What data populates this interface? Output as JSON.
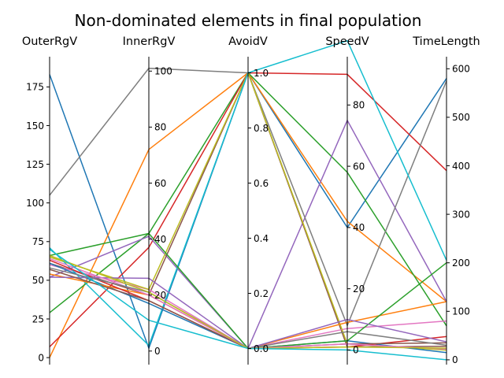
{
  "chart_data": {
    "type": "line",
    "subtype": "parallel-coordinates",
    "title": "Non-dominated elements in final population",
    "axes": [
      {
        "name": "OuterRgV",
        "range": [
          -3,
          193
        ],
        "ticks": [
          0,
          25,
          50,
          75,
          100,
          125,
          150,
          175
        ],
        "tick_side": "left"
      },
      {
        "name": "InnerRgV",
        "range": [
          -4,
          104.3
        ],
        "ticks": [
          0,
          20,
          40,
          60,
          80,
          100
        ],
        "tick_side": "right"
      },
      {
        "name": "AvoidV",
        "range": [
          -0.05,
          1.05
        ],
        "ticks": [
          0.0,
          0.2,
          0.4,
          0.6,
          0.8,
          1.0
        ],
        "tick_side": "right"
      },
      {
        "name": "SpeedV",
        "range": [
          -4,
          95
        ],
        "ticks": [
          0,
          20,
          40,
          60,
          80
        ],
        "tick_side": "right"
      },
      {
        "name": "TimeLength",
        "range": [
          -5,
          620
        ],
        "ticks": [
          0,
          100,
          200,
          300,
          400,
          500,
          600
        ],
        "tick_side": "right"
      }
    ],
    "series": [
      {
        "color": "#1f77b4",
        "values": [
          183,
          1,
          1.0,
          40,
          580
        ]
      },
      {
        "color": "#ff7f0e",
        "values": [
          0,
          72,
          1.0,
          42,
          120
        ]
      },
      {
        "color": "#2ca02c",
        "values": [
          29,
          42,
          1.0,
          58,
          70
        ]
      },
      {
        "color": "#d62728",
        "values": [
          7,
          37,
          1.0,
          90,
          390
        ]
      },
      {
        "color": "#9467bd",
        "values": [
          52,
          41,
          0.0,
          75,
          120
        ]
      },
      {
        "color": "#8c564b",
        "values": [
          61,
          20,
          1.0,
          1,
          28
        ]
      },
      {
        "color": "#e377c2",
        "values": [
          60,
          22,
          0.0,
          7,
          80
        ]
      },
      {
        "color": "#7f7f7f",
        "values": [
          105,
          101,
          1.0,
          8,
          575
        ]
      },
      {
        "color": "#bcbd22",
        "values": [
          65,
          22,
          1.0,
          2,
          20
        ]
      },
      {
        "color": "#17becf",
        "values": [
          71,
          2,
          1.0,
          101,
          205
        ]
      },
      {
        "color": "#1f77b4",
        "values": [
          61,
          17,
          0.0,
          3,
          15
        ]
      },
      {
        "color": "#ff7f0e",
        "values": [
          54,
          20,
          0.0,
          9,
          120
        ]
      },
      {
        "color": "#2ca02c",
        "values": [
          66,
          42,
          0.0,
          3,
          200
        ]
      },
      {
        "color": "#d62728",
        "values": [
          63,
          18,
          0.0,
          1,
          48
        ]
      },
      {
        "color": "#9467bd",
        "values": [
          52,
          26,
          0.0,
          10,
          37
        ]
      },
      {
        "color": "#8c564b",
        "values": [
          57,
          18,
          0.0,
          2,
          35
        ]
      },
      {
        "color": "#e377c2",
        "values": [
          64,
          20,
          0.0,
          2,
          22
        ]
      },
      {
        "color": "#7f7f7f",
        "values": [
          58,
          21,
          0.0,
          6,
          30
        ]
      },
      {
        "color": "#bcbd22",
        "values": [
          66,
          21,
          0.0,
          1,
          24
        ]
      },
      {
        "color": "#17becf",
        "values": [
          70,
          11,
          0.0,
          0,
          0
        ]
      }
    ]
  }
}
